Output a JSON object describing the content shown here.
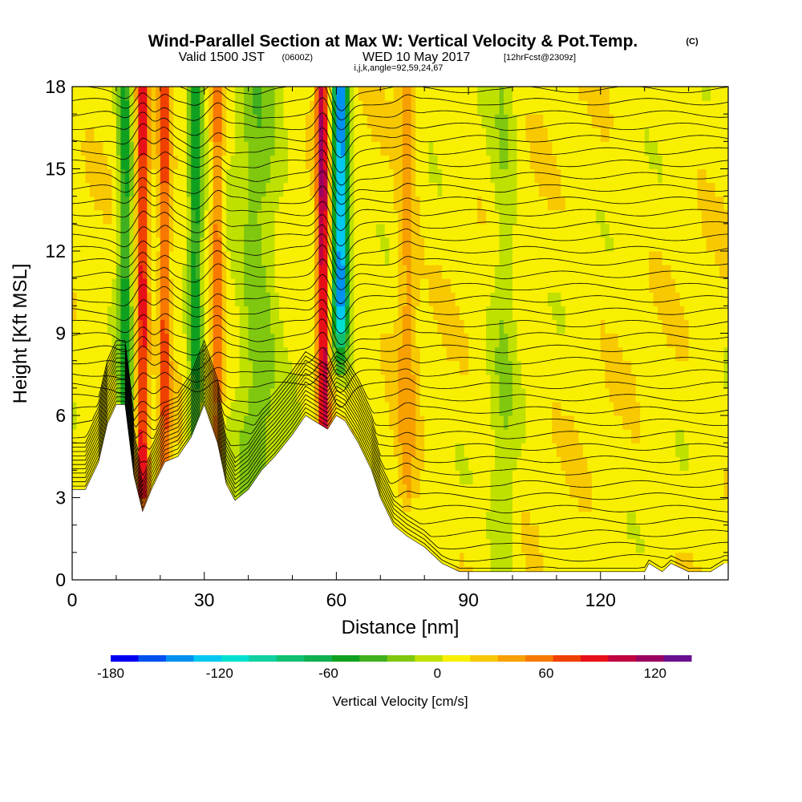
{
  "header": {
    "title": "Wind-Parallel Section at Max W: Vertical Velocity & Pot.Temp.",
    "copyright": "(C)",
    "valid_prefix": "Valid 1500 JST",
    "valid_utc": "(0600Z)",
    "valid_date": "WED 10 May 2017",
    "forecast": "[12hrFcst@2309z]",
    "indices": "i,j,k,angle=92,59,24,67"
  },
  "chart_data": {
    "type": "heatmap",
    "xlabel": "Distance [nm]",
    "ylabel": "Height [Kft MSL]",
    "xlim": [
      0,
      149
    ],
    "ylim": [
      0,
      18
    ],
    "x_ticks": [
      "0",
      "30",
      "60",
      "90",
      "120"
    ],
    "y_ticks": [
      "0",
      "3",
      "6",
      "9",
      "12",
      "15",
      "18"
    ],
    "colorbar": {
      "label": "Vertical Velocity [cm/s]",
      "tick_labels": [
        "-180",
        "-120",
        "-60",
        "0",
        "60",
        "120"
      ],
      "levels": [
        -180,
        -170,
        -160,
        -150,
        -140,
        -130,
        -120,
        -110,
        -100,
        -90,
        -80,
        -70,
        -60,
        -50,
        -40,
        -30,
        -20,
        -10,
        0,
        10,
        20,
        30,
        40,
        50,
        60,
        70,
        80,
        90,
        100,
        110,
        120,
        130,
        140
      ],
      "colors": [
        "#0000f0",
        "#0050f0",
        "#0090f0",
        "#00c8f0",
        "#00e0d0",
        "#10d0a0",
        "#10c070",
        "#10b050",
        "#10a020",
        "#40b020",
        "#80c810",
        "#c0e000",
        "#f8f000",
        "#f8c800",
        "#f8a000",
        "#f87800",
        "#f04000",
        "#e81018",
        "#c00040",
        "#9a0060",
        "#6a1090"
      ]
    },
    "updrafts_cm_s": [
      {
        "distance_nm": 16,
        "max": 90
      },
      {
        "distance_nm": 21,
        "max": 70
      },
      {
        "distance_nm": 33,
        "max": 60
      },
      {
        "distance_nm": 57,
        "max": 110
      },
      {
        "distance_nm": 76,
        "max": 40
      }
    ],
    "downdrafts_cm_s": [
      {
        "distance_nm": 12,
        "min": -50
      },
      {
        "distance_nm": 28,
        "min": -50
      },
      {
        "distance_nm": 42,
        "min": -20
      },
      {
        "distance_nm": 61,
        "min": -150
      },
      {
        "distance_nm": 98,
        "min": -10
      }
    ],
    "terrain_height_kft": [
      [
        0,
        3.3
      ],
      [
        3,
        3.3
      ],
      [
        6,
        4.3
      ],
      [
        8,
        5.7
      ],
      [
        10,
        6.4
      ],
      [
        12,
        6.4
      ],
      [
        14,
        3.8
      ],
      [
        16,
        2.5
      ],
      [
        18,
        3.3
      ],
      [
        21,
        4.3
      ],
      [
        24,
        4.5
      ],
      [
        27,
        5.2
      ],
      [
        30,
        6.4
      ],
      [
        33,
        5.0
      ],
      [
        35,
        3.5
      ],
      [
        37,
        2.9
      ],
      [
        40,
        3.3
      ],
      [
        43,
        4.0
      ],
      [
        46,
        4.5
      ],
      [
        50,
        5.3
      ],
      [
        53,
        6.0
      ],
      [
        56,
        5.7
      ],
      [
        58,
        5.5
      ],
      [
        60,
        6.0
      ],
      [
        62,
        5.8
      ],
      [
        65,
        5.0
      ],
      [
        68,
        4.0
      ],
      [
        70,
        3.0
      ],
      [
        73,
        2.0
      ],
      [
        76,
        1.6
      ],
      [
        80,
        1.2
      ],
      [
        84,
        0.6
      ],
      [
        88,
        0.3
      ],
      [
        95,
        0.3
      ],
      [
        110,
        0.3
      ],
      [
        130,
        0.3
      ],
      [
        131,
        0.6
      ],
      [
        134,
        0.3
      ],
      [
        136,
        0.6
      ],
      [
        140,
        0.3
      ],
      [
        145,
        0.3
      ],
      [
        148,
        0.6
      ]
    ],
    "theta_contours_K": [
      "295",
      "300",
      "305",
      "310",
      "315",
      "320",
      "325",
      "330",
      "335",
      "340",
      "345",
      "350"
    ]
  }
}
